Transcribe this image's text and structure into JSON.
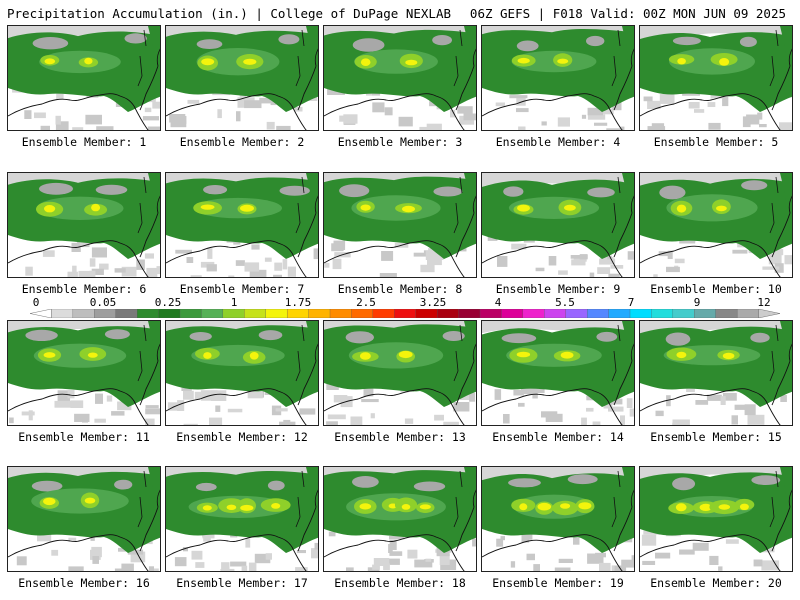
{
  "header": {
    "left": "Precipitation Accumulation (in.) | College of DuPage NEXLAB",
    "right": "06Z GEFS | F018 Valid: 00Z MON JUN 09 2025"
  },
  "colorbar": {
    "tick_labels": [
      "0",
      "0.05",
      "0.25",
      "1",
      "1.75",
      "2.5",
      "3.25",
      "4",
      "5.5",
      "7",
      "9",
      "12"
    ],
    "colors": [
      "#ffffff",
      "#dcdcdc",
      "#bebebe",
      "#9e9e9e",
      "#7a7a7a",
      "#2e8b2e",
      "#1f7a1f",
      "#3c9a3c",
      "#56b156",
      "#8fd02a",
      "#c6e21a",
      "#f4f40c",
      "#ffd400",
      "#ffb300",
      "#ff8c00",
      "#ff6a00",
      "#ff3c00",
      "#ee1010",
      "#cc0000",
      "#aa0010",
      "#990033",
      "#bb0066",
      "#dd0099",
      "#ee22cc",
      "#cc44ee",
      "#9966ff",
      "#5588ff",
      "#22aaff",
      "#00ddff",
      "#22dddd",
      "#44cccc",
      "#66aaaa",
      "#888888",
      "#aaaaaa",
      "#cccccc"
    ]
  },
  "palette": {
    "land_green": "#2e8b2e",
    "mid_green": "#4fa64f",
    "light_green": "#8fd02a",
    "yellow": "#f4f40c",
    "gray_light": "#d6d6d6",
    "gray_mid": "#a8a8a8",
    "gray_dark": "#7e7e7e"
  },
  "members": [
    {
      "label": "Ensemble Member: 1"
    },
    {
      "label": "Ensemble Member: 2"
    },
    {
      "label": "Ensemble Member: 3"
    },
    {
      "label": "Ensemble Member: 4"
    },
    {
      "label": "Ensemble Member: 5"
    },
    {
      "label": "Ensemble Member: 6"
    },
    {
      "label": "Ensemble Member: 7"
    },
    {
      "label": "Ensemble Member: 8"
    },
    {
      "label": "Ensemble Member: 9"
    },
    {
      "label": "Ensemble Member: 10"
    },
    {
      "label": "Ensemble Member: 11"
    },
    {
      "label": "Ensemble Member: 12"
    },
    {
      "label": "Ensemble Member: 13"
    },
    {
      "label": "Ensemble Member: 14"
    },
    {
      "label": "Ensemble Member: 15"
    },
    {
      "label": "Ensemble Member: 16"
    },
    {
      "label": "Ensemble Member: 17"
    },
    {
      "label": "Ensemble Member: 18"
    },
    {
      "label": "Ensemble Member: 19"
    },
    {
      "label": "Ensemble Member: 20"
    }
  ]
}
